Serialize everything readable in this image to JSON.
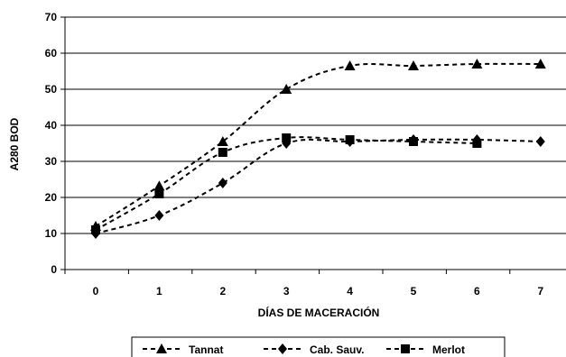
{
  "chart_data": {
    "type": "line",
    "xlabel": "DÍAS DE MACERACIÓN",
    "ylabel": "A280 BOD",
    "ylim": [
      0,
      70
    ],
    "xlim": [
      0,
      7
    ],
    "y_ticks": [
      "0",
      "10",
      "20",
      "30",
      "40",
      "50",
      "60",
      "70"
    ],
    "x_ticks": [
      "0",
      "1",
      "2",
      "3",
      "4",
      "5",
      "6",
      "7"
    ],
    "grid": "horizontal",
    "legend_position": "bottom",
    "series": [
      {
        "name": "Tannat",
        "marker": "triangle",
        "line_style": "dashed",
        "color": "#000000",
        "x": [
          0,
          1,
          2,
          3,
          4,
          5,
          6,
          7
        ],
        "y": [
          12,
          23.2,
          35.5,
          50,
          56.5,
          56.5,
          57,
          57
        ]
      },
      {
        "name": "Cab. Sauv.",
        "marker": "diamond",
        "line_style": "dashed",
        "color": "#000000",
        "x": [
          0,
          1,
          2,
          3,
          4,
          5,
          6,
          7
        ],
        "y": [
          10,
          15,
          24,
          35,
          35.5,
          36,
          36,
          35.5
        ]
      },
      {
        "name": "Merlot",
        "marker": "square",
        "line_style": "dashed",
        "color": "#000000",
        "x": [
          0,
          1,
          2,
          3,
          4,
          5,
          6
        ],
        "y": [
          11,
          21,
          32.5,
          36.5,
          36,
          35.5,
          35
        ]
      }
    ]
  }
}
